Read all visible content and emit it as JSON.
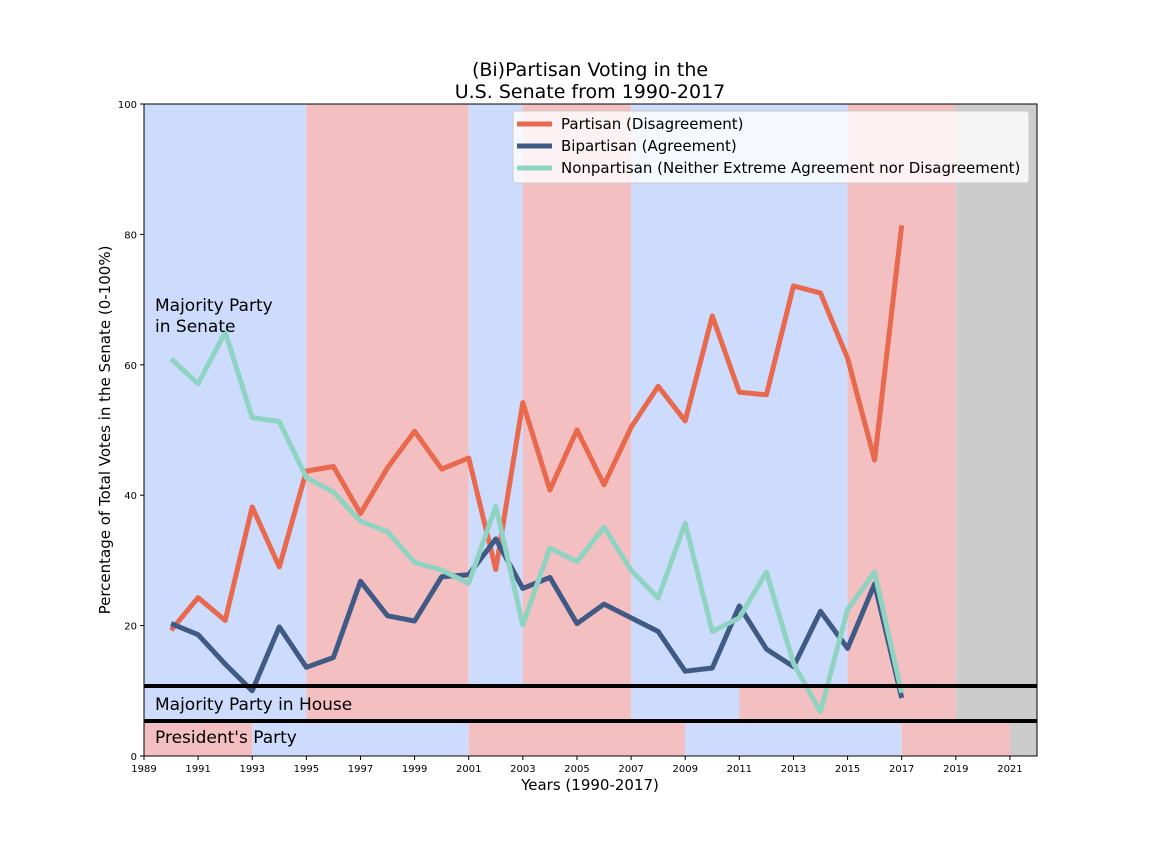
{
  "chart_data": {
    "type": "line",
    "title_line1": "(Bi)Partisan Voting in the",
    "title_line2": "U.S. Senate from 1990-2017",
    "xlabel": "Years (1990-2017)",
    "ylabel": "Percentage of Total Votes in the Senate (0-100%)",
    "xlim": [
      1989,
      2022
    ],
    "ylim": [
      0,
      100
    ],
    "x_ticks": [
      "1989",
      "1991",
      "1993",
      "1995",
      "1997",
      "1999",
      "2001",
      "2003",
      "2005",
      "2007",
      "2009",
      "2011",
      "2013",
      "2015",
      "2017",
      "2019",
      "2021"
    ],
    "y_ticks": [
      "0",
      "20",
      "40",
      "60",
      "80",
      "100"
    ],
    "grid": false,
    "legend_position": "top-right",
    "x": [
      1990,
      1991,
      1992,
      1993,
      1994,
      1995,
      1996,
      1997,
      1998,
      1999,
      2000,
      2001,
      2002,
      2003,
      2004,
      2005,
      2006,
      2007,
      2008,
      2009,
      2010,
      2011,
      2012,
      2013,
      2014,
      2015,
      2016,
      2017
    ],
    "series": [
      {
        "name": "Partisan (Disagreement)",
        "color": "#e8694e",
        "values": [
          19.3,
          24.3,
          20.8,
          38.2,
          29.0,
          43.7,
          44.4,
          37.2,
          44.2,
          49.8,
          44.0,
          45.7,
          28.6,
          54.2,
          40.8,
          50.0,
          41.6,
          50.4,
          56.7,
          51.4,
          67.5,
          55.8,
          55.4,
          72.1,
          71.0,
          61.0,
          45.4,
          81.4
        ]
      },
      {
        "name": "Bipartisan (Agreement)",
        "color": "#3f5a85",
        "values": [
          20.3,
          18.6,
          14.1,
          10.0,
          19.8,
          13.6,
          15.1,
          26.8,
          21.5,
          20.7,
          27.5,
          27.8,
          33.3,
          25.7,
          27.4,
          20.3,
          23.3,
          21.2,
          19.1,
          13.0,
          13.5,
          23.0,
          16.4,
          13.7,
          22.2,
          16.5,
          26.4,
          8.9
        ]
      },
      {
        "name": "Nonpartisan (Neither Extreme Agreement nor Disagreement)",
        "color": "#8fd3c3",
        "values": [
          60.9,
          57.1,
          65.0,
          51.9,
          51.3,
          42.7,
          40.5,
          36.0,
          34.4,
          29.7,
          28.5,
          26.5,
          38.3,
          20.1,
          31.9,
          29.8,
          35.1,
          28.5,
          24.2,
          35.7,
          19.1,
          21.2,
          28.2,
          14.2,
          6.8,
          22.5,
          28.2,
          9.7
        ]
      }
    ],
    "bands": {
      "senate_label_line1": "Majority Party",
      "senate_label_line2": "in Senate",
      "house_label": "Majority Party in House",
      "president_label": "President's Party",
      "senate": [
        {
          "from": 1989,
          "to": 1995,
          "party": "D"
        },
        {
          "from": 1995,
          "to": 2001,
          "party": "R"
        },
        {
          "from": 2001,
          "to": 2003,
          "party": "D"
        },
        {
          "from": 2003,
          "to": 2007,
          "party": "R"
        },
        {
          "from": 2007,
          "to": 2015,
          "party": "D"
        },
        {
          "from": 2015,
          "to": 2019,
          "party": "R"
        },
        {
          "from": 2019,
          "to": 2022,
          "party": "none"
        }
      ],
      "house": [
        {
          "from": 1989,
          "to": 1995,
          "party": "D"
        },
        {
          "from": 1995,
          "to": 2007,
          "party": "R"
        },
        {
          "from": 2007,
          "to": 2011,
          "party": "D"
        },
        {
          "from": 2011,
          "to": 2019,
          "party": "R"
        },
        {
          "from": 2019,
          "to": 2022,
          "party": "none"
        }
      ],
      "president": [
        {
          "from": 1989,
          "to": 1993,
          "party": "R"
        },
        {
          "from": 1993,
          "to": 2001,
          "party": "D"
        },
        {
          "from": 2001,
          "to": 2009,
          "party": "R"
        },
        {
          "from": 2009,
          "to": 2017,
          "party": "D"
        },
        {
          "from": 2017,
          "to": 2021,
          "party": "R"
        },
        {
          "from": 2021,
          "to": 2022,
          "party": "none"
        }
      ],
      "colors": {
        "D": "#cddcfc",
        "R": "#f4bfc0",
        "none": "#cccccc"
      }
    }
  }
}
